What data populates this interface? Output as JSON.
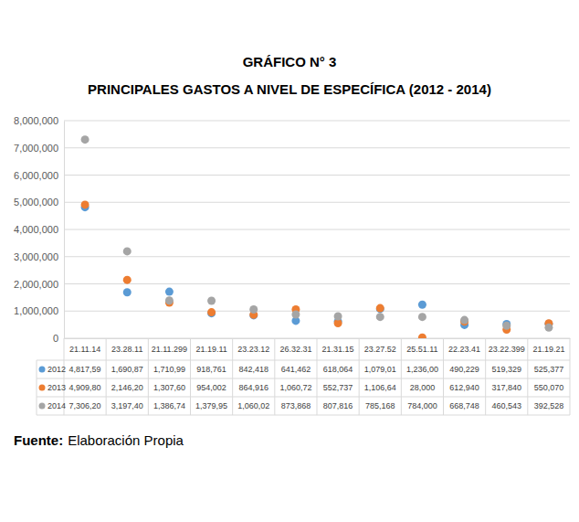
{
  "chart_data": {
    "type": "scatter",
    "title": "GRÁFICO N° 3",
    "subtitle": "PRINCIPALES GASTOS A NIVEL DE ESPECÍFICA (2012 - 2014)",
    "source_label": "Fuente:",
    "source": "Elaboración Propia",
    "categories": [
      "21.11.14",
      "23.28.11",
      "21.11.299",
      "21.19.11",
      "23.23.12",
      "26.32.31",
      "21.31.15",
      "23.27.52",
      "25.51.11",
      "22.23.41",
      "23.22.399",
      "21.19.21"
    ],
    "series": [
      {
        "name": "2012",
        "color": "#5b9bd5",
        "marker": "circle",
        "values": [
          4817590,
          1690870,
          1710990,
          918761,
          842418,
          641462,
          618064,
          1079010,
          1236000,
          490229,
          519329,
          525377
        ],
        "value_labels": [
          "4,817,59",
          "1,690,87",
          "1,710,99",
          "918,761",
          "842,418",
          "641,462",
          "618,064",
          "1,079,01",
          "1,236,00",
          "490,229",
          "519,329",
          "525,377"
        ]
      },
      {
        "name": "2013",
        "color": "#ed7d31",
        "marker": "circle",
        "values": [
          4909800,
          2146200,
          1307600,
          954002,
          864916,
          1060720,
          552737,
          1106640,
          28000,
          612940,
          317840,
          550070
        ],
        "value_labels": [
          "4,909,80",
          "2,146,20",
          "1,307,60",
          "954,002",
          "864,916",
          "1,060,72",
          "552,737",
          "1,106,64",
          "28,000",
          "612,940",
          "317,840",
          "550,070"
        ]
      },
      {
        "name": "2014",
        "color": "#a5a5a5",
        "marker": "circle",
        "values": [
          7306200,
          3197400,
          1386740,
          1379950,
          1060020,
          873868,
          807816,
          785168,
          784000,
          668748,
          460543,
          392528
        ],
        "value_labels": [
          "7,306,20",
          "3,197,40",
          "1,386,74",
          "1,379,95",
          "1,060,02",
          "873,868",
          "807,816",
          "785,168",
          "784,000",
          "668,748",
          "460,543",
          "392,528"
        ]
      }
    ],
    "ylim": [
      0,
      8000000
    ],
    "yticks": [
      0,
      {
        "value": 1000000,
        "label": "1,000,000"
      },
      {
        "value": 2000000,
        "label": "2,000,000"
      },
      {
        "value": 3000000,
        "label": "3,000,000"
      },
      {
        "value": 4000000,
        "label": "4,000,000"
      },
      {
        "value": 5000000,
        "label": "5,000,000"
      },
      {
        "value": 6000000,
        "label": "6,000,000"
      },
      {
        "value": 7000000,
        "label": "7,000,000"
      },
      {
        "value": 8000000,
        "label": "8,000,000"
      }
    ],
    "grid": true,
    "legend": "bottom"
  }
}
